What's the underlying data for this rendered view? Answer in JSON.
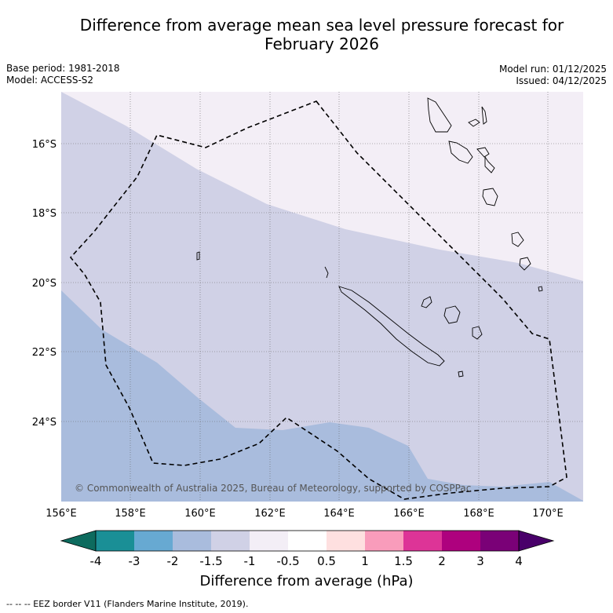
{
  "title_line1": "Difference from average mean sea level pressure forecast for",
  "title_line2": "February 2026",
  "meta_left": {
    "base_period": "Base period: 1981-2018",
    "model": "Model: ACCESS-S2"
  },
  "meta_right": {
    "model_run": "Model run: 01/12/2025",
    "issued": "Issued: 04/12/2025"
  },
  "map": {
    "lat_labels": [
      "16°S",
      "18°S",
      "20°S",
      "22°S",
      "24°S"
    ],
    "lon_labels": [
      "156°E",
      "158°E",
      "160°E",
      "162°E",
      "164°E",
      "166°E",
      "168°E",
      "170°E"
    ],
    "copyright": "© Commonwealth of Australia 2025, Bureau of Meteorology, supported by COSPPac"
  },
  "colorbar": {
    "ticks": [
      "-4",
      "-3",
      "-2",
      "-1.5",
      "-1",
      "-0.5",
      "0.5",
      "1",
      "1.5",
      "2",
      "3",
      "4"
    ],
    "colors": [
      "#1a8f96",
      "#67a9d2",
      "#a9bcdd",
      "#d0d1e6",
      "#f3eef6",
      "#ffffff",
      "#fee0e0",
      "#f99cbb",
      "#dd3497",
      "#ae017e",
      "#7a0177"
    ],
    "low_extend": "#0d6b5e",
    "high_extend": "#49006a",
    "unit_label": "Difference from average (hPa)"
  },
  "footer": "--  --  -- EEZ border V11 (Flanders Marine Institute, 2019)."
}
